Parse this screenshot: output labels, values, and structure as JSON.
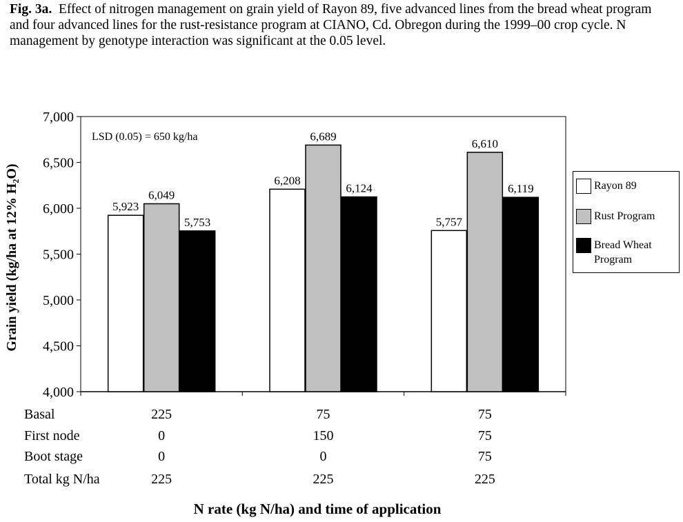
{
  "caption": {
    "label": "Fig. 3a.",
    "text": "Effect of nitrogen management on grain yield of Rayon 89, five advanced lines from the bread wheat program and four advanced lines for the rust-resistance program at CIANO, Cd. Obregon during the 1999–00 crop cycle.  N management by genotype interaction was significant at the 0.05 level."
  },
  "chart_data": {
    "type": "bar",
    "title": "",
    "ylabel": "Grain yield (kg/ha at 12% H₂O)",
    "xlabel": "N rate (kg N/ha) and time of application",
    "ylim": [
      4000,
      7000
    ],
    "yticks": [
      "4,000",
      "4,500",
      "5,000",
      "5,500",
      "6,000",
      "6,500",
      "7,000"
    ],
    "annotation": "LSD (0.05) = 650 kg/ha",
    "legend_position": "right",
    "categories": [
      "225/0/0",
      "75/150/0",
      "75/75/75"
    ],
    "series": [
      {
        "name": "Rayon 89",
        "color": "#ffffff",
        "values": [
          5923,
          6208,
          5757
        ],
        "labels": [
          "5,923",
          "6,208",
          "5,757"
        ]
      },
      {
        "name": "Rust Program",
        "color": "#c0c0c0",
        "values": [
          6049,
          6689,
          6610
        ],
        "labels": [
          "6,049",
          "6,689",
          "6,610"
        ]
      },
      {
        "name": "Bread Wheat Program",
        "color": "#000000",
        "values": [
          5753,
          6124,
          6119
        ],
        "labels": [
          "5,753",
          "6,124",
          "6,119"
        ]
      }
    ],
    "table": {
      "rows": [
        {
          "label": "Basal",
          "values": [
            "225",
            "75",
            "75"
          ]
        },
        {
          "label": "First node",
          "values": [
            "0",
            "150",
            "75"
          ]
        },
        {
          "label": "Boot stage",
          "values": [
            "0",
            "0",
            "75"
          ]
        },
        {
          "label": "Total kg N/ha",
          "values": [
            "225",
            "225",
            "225"
          ]
        }
      ]
    }
  }
}
